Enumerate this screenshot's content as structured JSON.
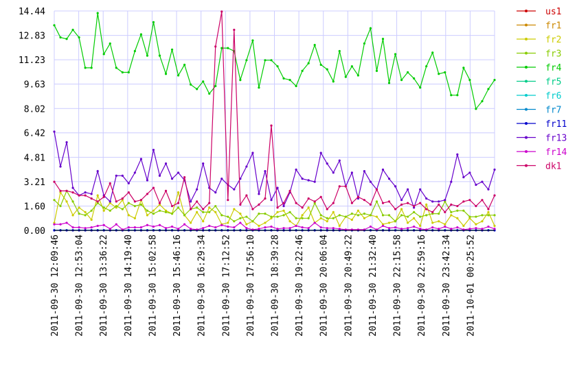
{
  "chart_data": {
    "type": "line",
    "title": "",
    "xlabel": "",
    "ylabel": "",
    "ylim": [
      0,
      14.44
    ],
    "y_ticks": [
      "0.00",
      "1.60",
      "3.21",
      "4.81",
      "6.42",
      "8.02",
      "9.63",
      "11.23",
      "12.83",
      "14.44"
    ],
    "x_tick_labels": [
      "2011-09-30 12:09:46",
      "2011-09-30 12:53:04",
      "2011-09-30 13:36:22",
      "2011-09-30 14:19:40",
      "2011-09-30 15:02:58",
      "2011-09-30 15:46:16",
      "2011-09-30 16:29:34",
      "2011-09-30 17:12:52",
      "2011-09-30 17:56:10",
      "2011-09-30 18:39:28",
      "2011-09-30 19:22:46",
      "2011-09-30 20:06:04",
      "2011-09-30 20:49:22",
      "2011-09-30 21:32:40",
      "2011-09-30 22:15:58",
      "2011-09-30 22:59:16",
      "2011-09-30 23:42:34",
      "2011-10-01 00:25:52"
    ],
    "grid": true,
    "legend_position": "right",
    "series": [
      {
        "name": "us1",
        "color": "#cc0000",
        "values": []
      },
      {
        "name": "fr1",
        "color": "#cc8800",
        "values": []
      },
      {
        "name": "fr2",
        "color": "#cccc00",
        "values": [
          0.5,
          2.5,
          1.9,
          1.0,
          1.5,
          1.2,
          0.7,
          2.3,
          1.3,
          1.8,
          1.5,
          2.0,
          1.0,
          0.8,
          2.0,
          1.0,
          1.3,
          1.7,
          1.3,
          1.1,
          2.5,
          1.0,
          0.5,
          1.2,
          0.6,
          1.5,
          1.2,
          0.4,
          0.5,
          1.4,
          1.1,
          0.4,
          0.6,
          0.3,
          0.5,
          0.8,
          1.2,
          1.3,
          0.6,
          0.3,
          1.0,
          1.5,
          0.5,
          0.8,
          0.6,
          1.2,
          0.3,
          0.9,
          0.7,
          1.3,
          0.8,
          1.0,
          0.9,
          0.4,
          0.5,
          0.6,
          1.4,
          0.5,
          0.8,
          0.3,
          1.7,
          0.5,
          0.6,
          0.4,
          1.0,
          0.8,
          0.3,
          0.8,
          0.4,
          0.6,
          1.2,
          0.3
        ]
      },
      {
        "name": "fr3",
        "color": "#88cc00",
        "values": [
          2.0,
          1.6,
          2.6,
          1.9,
          1.1,
          1.0,
          1.3,
          1.8,
          1.5,
          1.3,
          1.6,
          1.4,
          1.8,
          1.6,
          1.7,
          1.3,
          1.1,
          1.3,
          1.2,
          1.1,
          1.5,
          1.0,
          1.4,
          1.5,
          1.2,
          1.2,
          1.6,
          1.0,
          0.9,
          0.6,
          0.8,
          0.9,
          0.6,
          1.1,
          1.1,
          0.9,
          0.9,
          1.0,
          1.2,
          0.8,
          0.8,
          0.8,
          1.8,
          1.0,
          0.8,
          0.8,
          1.0,
          0.9,
          1.1,
          1.0,
          1.1,
          1.0,
          1.9,
          1.0,
          1.0,
          0.6,
          1.0,
          0.9,
          1.2,
          0.9,
          1.0,
          1.1,
          1.1,
          1.9,
          1.2,
          1.3,
          1.3,
          0.9,
          0.9,
          1.0,
          1.0,
          1.0
        ]
      },
      {
        "name": "fr4",
        "color": "#00cc00",
        "values": [
          13.5,
          12.7,
          12.6,
          13.2,
          12.7,
          10.7,
          10.7,
          14.3,
          11.6,
          12.3,
          10.7,
          10.4,
          10.4,
          11.8,
          12.9,
          11.5,
          13.7,
          11.5,
          10.3,
          11.9,
          10.2,
          10.9,
          9.6,
          9.3,
          9.8,
          9.0,
          9.5,
          12.0,
          12.0,
          11.8,
          9.9,
          11.2,
          12.5,
          9.4,
          11.2,
          11.2,
          10.8,
          10.0,
          9.9,
          9.5,
          10.5,
          11.0,
          12.2,
          10.9,
          10.6,
          9.8,
          11.8,
          10.1,
          10.8,
          10.2,
          12.3,
          13.3,
          10.5,
          12.6,
          9.7,
          11.6,
          9.9,
          10.4,
          10.0,
          9.4,
          10.8,
          11.7,
          10.3,
          10.4,
          8.9,
          8.9,
          10.7,
          9.9,
          8.0,
          8.5,
          9.3,
          9.9
        ]
      },
      {
        "name": "fr5",
        "color": "#00cc88",
        "values": []
      },
      {
        "name": "fr6",
        "color": "#00cccc",
        "values": []
      },
      {
        "name": "fr7",
        "color": "#0088cc",
        "values": [
          0.02,
          0.02,
          0.02,
          0.02,
          0.02,
          0.02,
          0.02,
          0.02,
          0.02,
          0.02,
          0.02,
          0.02,
          0.02,
          0.02,
          0.02,
          0.02,
          0.02,
          0.02,
          0.02,
          0.02,
          0.02,
          0.02,
          0.02,
          0.02,
          0.02,
          0.02,
          0.02,
          0.02,
          0.02,
          0.02,
          0.02,
          0.02,
          0.02,
          0.02,
          0.02,
          0.02,
          0.02,
          0.02,
          0.02,
          0.02,
          0.02,
          0.02,
          0.02,
          0.02,
          0.02,
          0.02,
          0.02,
          0.02,
          0.02,
          0.02,
          0.02,
          0.02,
          0.02,
          0.02,
          0.02,
          0.02,
          0.02,
          0.02,
          0.02,
          0.02,
          0.02,
          0.02,
          0.02,
          0.02,
          0.02,
          0.02,
          0.02,
          0.02,
          0.02,
          0.02,
          0.02,
          0.02
        ]
      },
      {
        "name": "fr11",
        "color": "#0000cc",
        "values": [
          0.0,
          0.0,
          0.0,
          0.0,
          0.0,
          0.0,
          0.0,
          0.0,
          0.0,
          0.0,
          0.0,
          0.0,
          0.0,
          0.0,
          0.0,
          0.0,
          0.0,
          0.0,
          0.0,
          0.0,
          0.0,
          0.0,
          0.0,
          0.0,
          0.0,
          0.0,
          0.0,
          0.0,
          0.0,
          0.0,
          0.0,
          0.0,
          0.0,
          0.0,
          0.0,
          0.0,
          0.0,
          0.0,
          0.0,
          0.0,
          0.0,
          0.0,
          0.0,
          0.0,
          0.0,
          0.0,
          0.0,
          0.0,
          0.0,
          0.0,
          0.0,
          0.0,
          0.0,
          0.0,
          0.0,
          0.0,
          0.0,
          0.0,
          0.0,
          0.0,
          0.0,
          0.0,
          0.0,
          0.0,
          0.0,
          0.0,
          0.0,
          0.0,
          0.0,
          0.0,
          0.0,
          0.0
        ]
      },
      {
        "name": "fr13",
        "color": "#6600cc",
        "values": [
          6.5,
          4.2,
          5.8,
          2.8,
          2.3,
          2.5,
          2.4,
          3.9,
          2.3,
          1.9,
          3.6,
          3.6,
          3.1,
          3.8,
          4.7,
          3.3,
          5.3,
          3.6,
          4.4,
          3.4,
          3.8,
          3.3,
          1.9,
          2.7,
          4.4,
          2.8,
          2.5,
          3.4,
          3.0,
          2.7,
          3.4,
          4.2,
          5.1,
          2.4,
          3.9,
          2.0,
          2.8,
          1.6,
          2.5,
          4.0,
          3.4,
          3.3,
          3.2,
          5.1,
          4.4,
          3.8,
          4.6,
          2.9,
          3.8,
          2.1,
          3.9,
          3.2,
          2.7,
          4.0,
          3.4,
          2.9,
          2.0,
          2.7,
          1.5,
          2.7,
          2.1,
          1.9,
          1.9,
          2.0,
          3.2,
          5.0,
          3.5,
          3.8,
          3.0,
          3.2,
          2.7,
          4.0
        ]
      },
      {
        "name": "fr14",
        "color": "#cc00cc",
        "values": [
          0.4,
          0.4,
          0.5,
          0.2,
          0.2,
          0.15,
          0.2,
          0.3,
          0.35,
          0.1,
          0.4,
          0.05,
          0.2,
          0.2,
          0.2,
          0.35,
          0.25,
          0.35,
          0.15,
          0.25,
          0.1,
          0.4,
          0.1,
          0.05,
          0.15,
          0.3,
          0.2,
          0.35,
          0.25,
          0.2,
          0.5,
          0.15,
          0.05,
          0.1,
          0.2,
          0.25,
          0.1,
          0.15,
          0.15,
          0.3,
          0.2,
          0.15,
          0.5,
          0.2,
          0.15,
          0.15,
          0.1,
          0.05,
          0.05,
          0.05,
          0.05,
          0.25,
          0.05,
          0.3,
          0.15,
          0.2,
          0.1,
          0.15,
          0.25,
          0.1,
          0.05,
          0.2,
          0.1,
          0.25,
          0.1,
          0.2,
          0.05,
          0.1,
          0.15,
          0.1,
          0.25,
          0.1
        ]
      },
      {
        "name": "dk1",
        "color": "#cc0066",
        "values": [
          3.2,
          2.6,
          2.6,
          2.5,
          2.3,
          2.3,
          2.1,
          1.9,
          2.2,
          3.1,
          1.9,
          2.1,
          2.5,
          1.9,
          2.0,
          2.4,
          2.8,
          1.8,
          2.6,
          1.6,
          1.8,
          3.5,
          1.4,
          1.9,
          1.4,
          1.8,
          12.1,
          14.4,
          2.0,
          13.2,
          1.7,
          2.3,
          1.4,
          1.7,
          2.1,
          6.9,
          1.5,
          1.8,
          2.6,
          1.8,
          1.5,
          2.1,
          1.9,
          2.2,
          1.4,
          1.8,
          2.9,
          2.9,
          1.8,
          2.2,
          2.0,
          1.7,
          2.7,
          1.8,
          1.9,
          1.4,
          1.7,
          1.8,
          1.6,
          1.8,
          1.4,
          1.2,
          1.7,
          1.2,
          1.7,
          1.6,
          1.9,
          2.0,
          1.6,
          2.0,
          1.4,
          2.3
        ]
      }
    ]
  }
}
